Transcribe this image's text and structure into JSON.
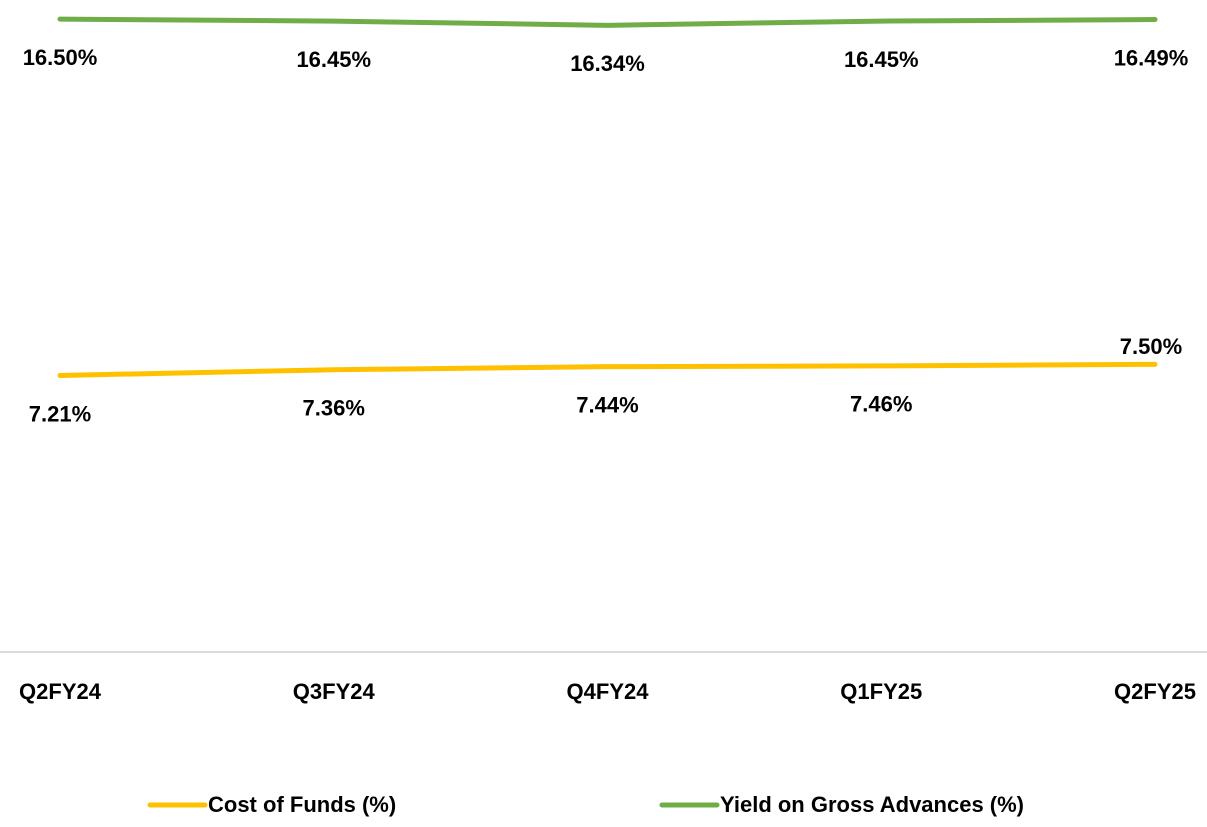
{
  "chart_data": {
    "type": "line",
    "categories": [
      "Q2FY24",
      "Q3FY24",
      "Q4FY24",
      "Q1FY25",
      "Q2FY25"
    ],
    "series": [
      {
        "name": "Cost of Funds (%)",
        "color": "#FFC000",
        "values": [
          7.21,
          7.36,
          7.44,
          7.46,
          7.5
        ],
        "value_labels": [
          "7.21%",
          "7.36%",
          "7.44%",
          "7.46%",
          "7.50%"
        ]
      },
      {
        "name": "Yield on Gross Advances (%)",
        "color": "#70AD47",
        "values": [
          16.5,
          16.45,
          16.34,
          16.45,
          16.49
        ],
        "value_labels": [
          "16.50%",
          "16.45%",
          "16.34%",
          "16.45%",
          "16.49%"
        ]
      }
    ],
    "ylim": [
      0,
      17
    ],
    "grid": false
  }
}
